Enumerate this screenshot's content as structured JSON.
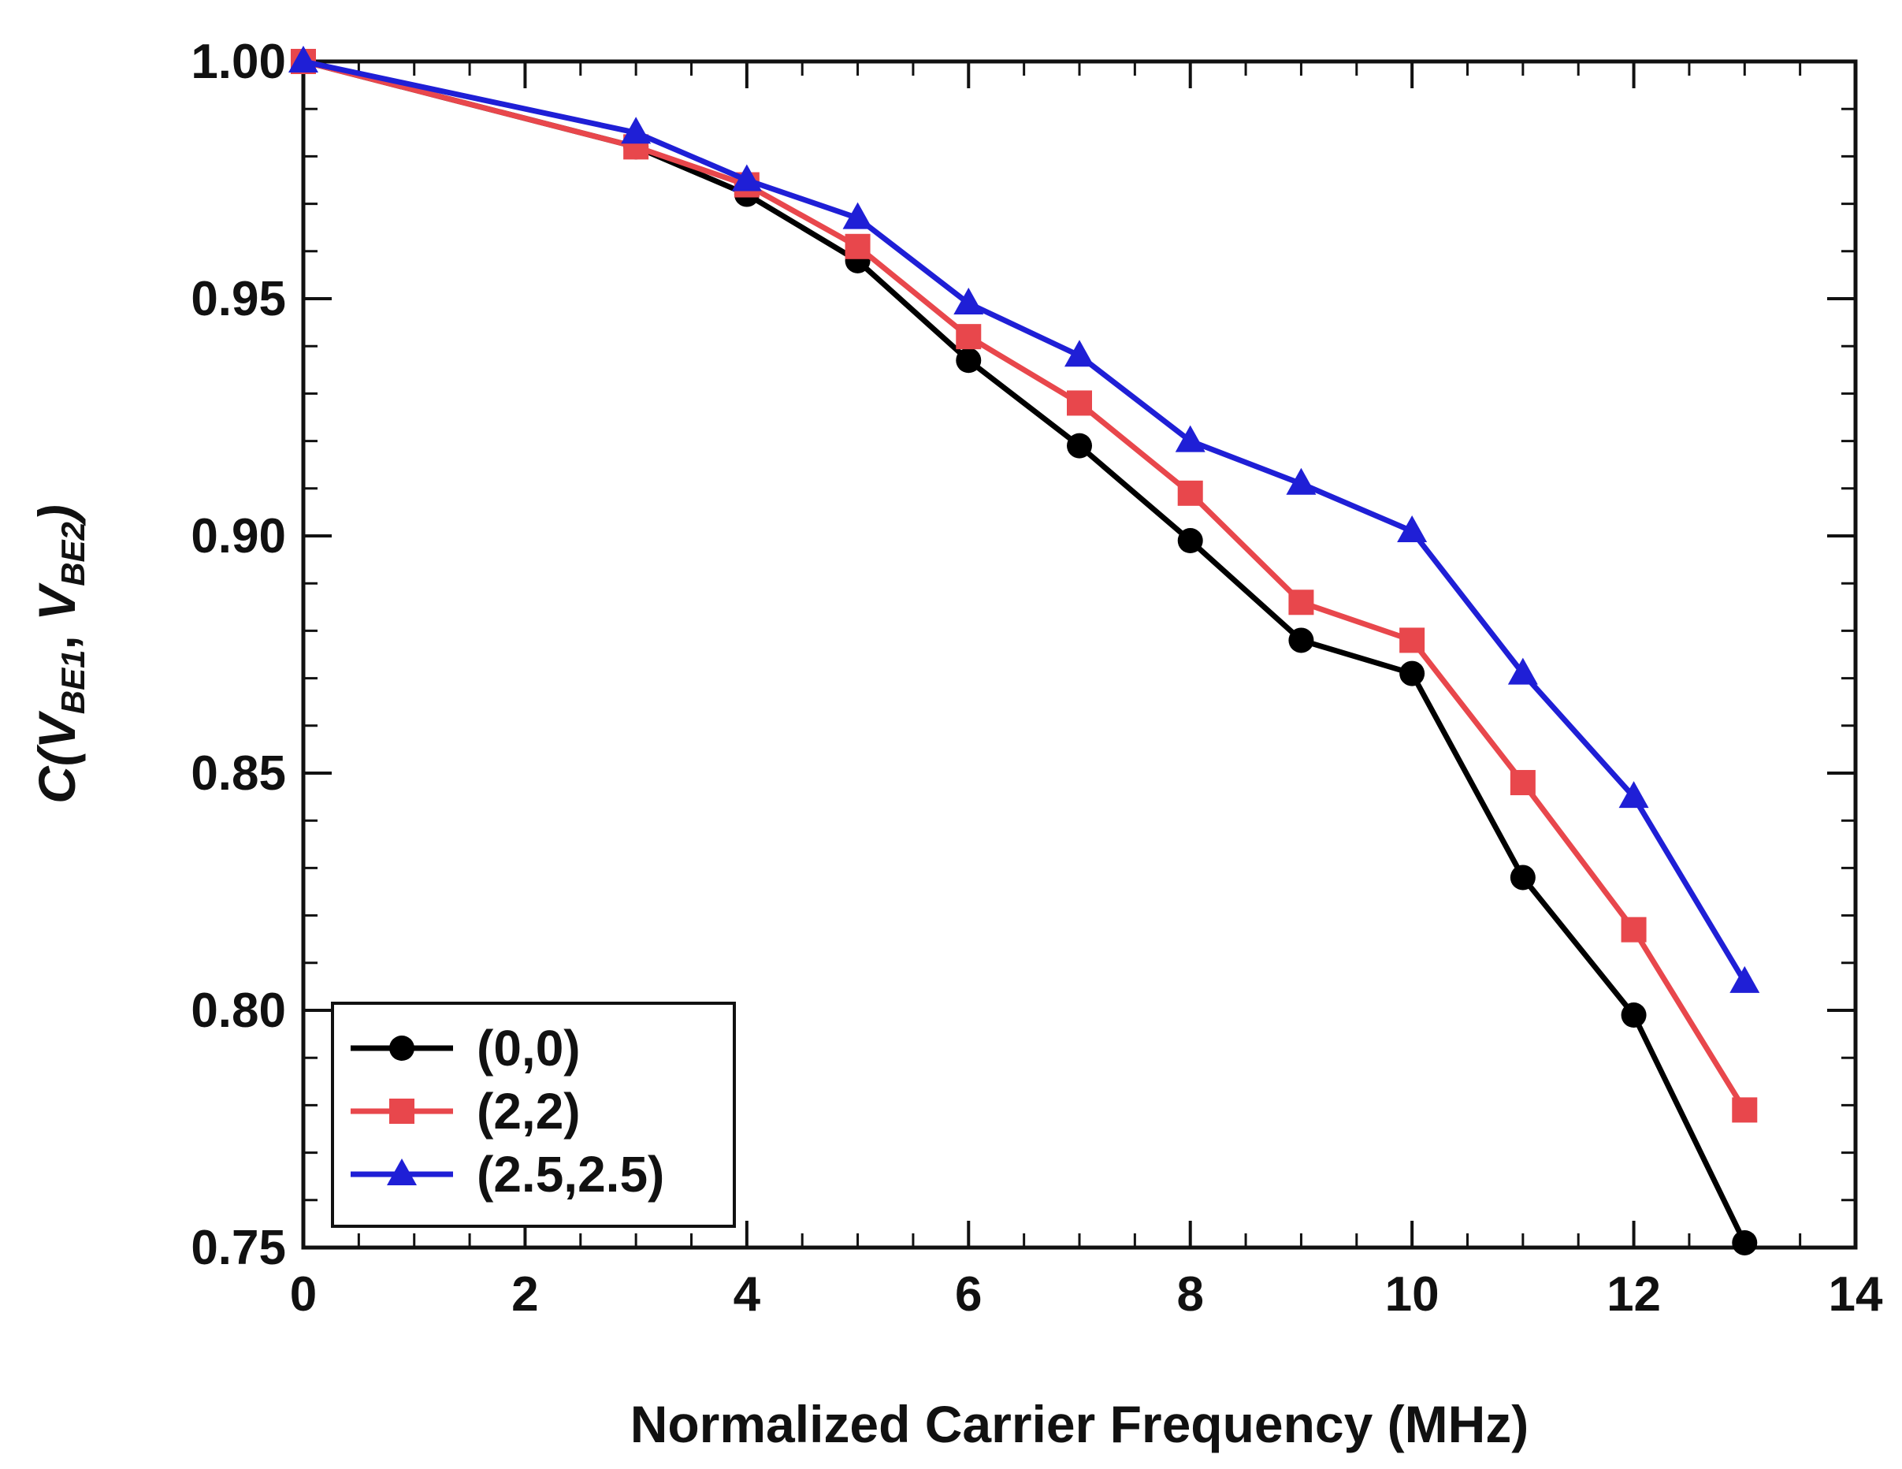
{
  "chart_data": {
    "type": "line",
    "title": "",
    "xlabel": "Normalized Carrier Frequency (MHz)",
    "ylabel": {
      "prefix": "C(",
      "v1": "V",
      "s1": "BE1",
      "sep": ", ",
      "v2": "V",
      "s2": "BE2",
      "suffix": ")"
    },
    "xlim": [
      0,
      14
    ],
    "ylim": [
      0.75,
      1.0
    ],
    "xticks": [
      0,
      2,
      4,
      6,
      8,
      10,
      12,
      14
    ],
    "xtick_labels": [
      "0",
      "2",
      "4",
      "6",
      "8",
      "10",
      "12",
      "14"
    ],
    "yticks": [
      0.75,
      0.8,
      0.85,
      0.9,
      0.95,
      1.0
    ],
    "ytick_labels": [
      "0.75",
      "0.80",
      "0.85",
      "0.90",
      "0.95",
      "1.00"
    ],
    "x_minor_step": 0.5,
    "y_minor_step": 0.01,
    "grid": false,
    "legend_position": "bottom-left",
    "x": [
      0,
      3,
      4,
      5,
      6,
      7,
      8,
      9,
      10,
      11,
      12,
      13
    ],
    "series": [
      {
        "name": "(0,0)",
        "color": "#000000",
        "marker": "circle",
        "values": [
          1.0,
          0.982,
          0.972,
          0.958,
          0.937,
          0.919,
          0.899,
          0.878,
          0.871,
          0.828,
          0.799,
          0.751
        ]
      },
      {
        "name": "(2,2)",
        "color": "#e8474c",
        "marker": "square",
        "values": [
          1.0,
          0.982,
          0.974,
          0.961,
          0.942,
          0.928,
          0.909,
          0.886,
          0.878,
          0.848,
          0.817,
          0.779
        ]
      },
      {
        "name": "(2.5,2.5)",
        "color": "#1f1fd6",
        "marker": "triangle",
        "values": [
          1.0,
          0.985,
          0.975,
          0.967,
          0.949,
          0.938,
          0.92,
          0.911,
          0.901,
          0.871,
          0.845,
          0.806
        ]
      }
    ]
  }
}
